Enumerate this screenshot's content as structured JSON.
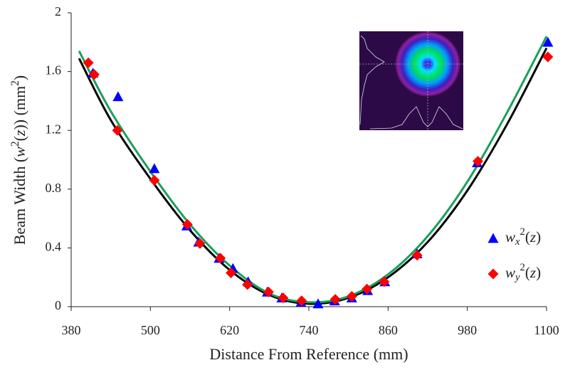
{
  "chart_data": {
    "type": "scatter",
    "x_label": "Distance From Reference (mm)",
    "y_label": "Beam Width (w2(z)) (mm2)",
    "xlim": [
      380,
      1100
    ],
    "ylim": [
      0,
      2
    ],
    "xticks": [
      380,
      500,
      620,
      740,
      860,
      980,
      1100
    ],
    "yticks": [
      0,
      0.4,
      0.8,
      1.2,
      1.6,
      2
    ],
    "series": [
      {
        "name": "wx2(z)",
        "color": "#0000ff",
        "marker": "triangle",
        "x": [
          413,
          451,
          506,
          555,
          573,
          604,
          625,
          648,
          677,
          699,
          728,
          754,
          779,
          805,
          829,
          855,
          904,
          995,
          1102
        ],
        "values": [
          1.59,
          1.43,
          0.94,
          0.55,
          0.44,
          0.33,
          0.26,
          0.17,
          0.1,
          0.06,
          0.03,
          0.02,
          0.04,
          0.06,
          0.11,
          0.17,
          0.36,
          0.98,
          1.8
        ]
      },
      {
        "name": "wy2(z)",
        "color": "#ff0000",
        "marker": "diamond",
        "x": [
          406,
          415,
          450,
          506,
          556,
          575,
          606,
          622,
          647,
          679,
          701,
          729,
          780,
          805,
          828,
          854,
          904,
          996,
          1102
        ],
        "values": [
          1.66,
          1.58,
          1.2,
          0.86,
          0.56,
          0.43,
          0.33,
          0.23,
          0.15,
          0.1,
          0.06,
          0.04,
          0.05,
          0.07,
          0.12,
          0.17,
          0.35,
          0.99,
          1.7
        ]
      }
    ],
    "fit_lines": [
      {
        "color": "#000000",
        "x": [
          392,
          440,
          500,
          560,
          620,
          680,
          740,
          800,
          860,
          920,
          980,
          1040,
          1100
        ],
        "values": [
          1.69,
          1.27,
          0.87,
          0.52,
          0.25,
          0.08,
          0.02,
          0.06,
          0.2,
          0.44,
          0.79,
          1.24,
          1.76
        ]
      },
      {
        "color": "#1aa05a",
        "x": [
          392,
          440,
          500,
          560,
          620,
          680,
          740,
          800,
          860,
          920,
          980,
          1040,
          1100
        ],
        "values": [
          1.74,
          1.33,
          0.92,
          0.56,
          0.28,
          0.09,
          0.03,
          0.07,
          0.22,
          0.48,
          0.85,
          1.32,
          1.84
        ]
      }
    ]
  }
}
